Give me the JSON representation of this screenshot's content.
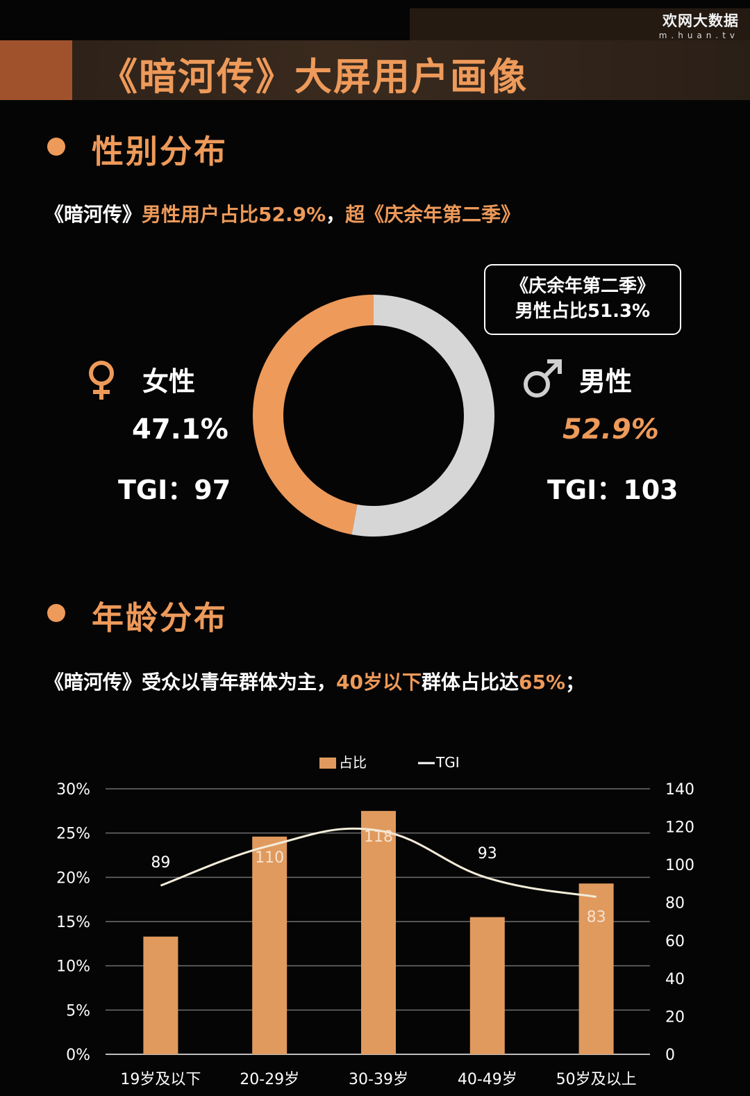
{
  "brand": {
    "name": "欢网大数据",
    "url": "m.huan.tv"
  },
  "page_title": "《暗河传》大屏用户画像",
  "gender_section": {
    "title": "性别分布",
    "subtitle_parts": [
      {
        "text": "《暗河传》",
        "color": "#ffffff"
      },
      {
        "text": "男性用户占比52.9%",
        "color": "#ee9a5a"
      },
      {
        "text": "，",
        "color": "#ffffff"
      },
      {
        "text": "超《庆余年第二季》",
        "color": "#ee9a5a"
      }
    ],
    "callout_line1": "《庆余年第二季》",
    "callout_line2": "男性占比51.3%",
    "female": {
      "label": "女性",
      "pct": "47.1%",
      "tgi": "TGI：97"
    },
    "male": {
      "label": "男性",
      "pct": "52.9%",
      "tgi": "TGI：103"
    }
  },
  "age_section": {
    "title": "年龄分布",
    "subtitle_parts": [
      {
        "text": "《暗河传》受众以青年群体为主，",
        "color": "#ffffff"
      },
      {
        "text": "40岁以下",
        "color": "#ee9a5a"
      },
      {
        "text": "群体占比达",
        "color": "#ffffff"
      },
      {
        "text": "65%",
        "color": "#ee9a5a"
      },
      {
        "text": "；",
        "color": "#ffffff"
      }
    ]
  },
  "colors": {
    "accent": "#ee9a5a",
    "grey": "#d6d6d6",
    "bar": "#e09a5e"
  },
  "chart_data": [
    {
      "type": "pie",
      "categories": [
        "女性",
        "男性"
      ],
      "values": [
        47.1,
        52.9
      ],
      "colors": [
        "#ee9a5a",
        "#d6d6d6"
      ]
    },
    {
      "type": "bar",
      "categories": [
        "19岁及以下",
        "20-29岁",
        "30-39岁",
        "40-49岁",
        "50岁及以上"
      ],
      "series": [
        {
          "name": "占比",
          "type": "bar",
          "axis": "left",
          "values": [
            13.3,
            24.6,
            27.5,
            15.5,
            19.3
          ]
        },
        {
          "name": "TGI",
          "type": "line",
          "axis": "right",
          "values": [
            89,
            110,
            118,
            93,
            83
          ]
        }
      ],
      "ylim_left": [
        0,
        30
      ],
      "yticks_left": [
        "0%",
        "5%",
        "10%",
        "15%",
        "20%",
        "25%",
        "30%"
      ],
      "ylim_right": [
        0,
        140
      ],
      "yticks_right": [
        "0",
        "20",
        "40",
        "60",
        "80",
        "100",
        "120",
        "140"
      ],
      "legend": {
        "position": "top-center",
        "entries": [
          "占比",
          "TGI"
        ]
      },
      "grid": true
    }
  ]
}
